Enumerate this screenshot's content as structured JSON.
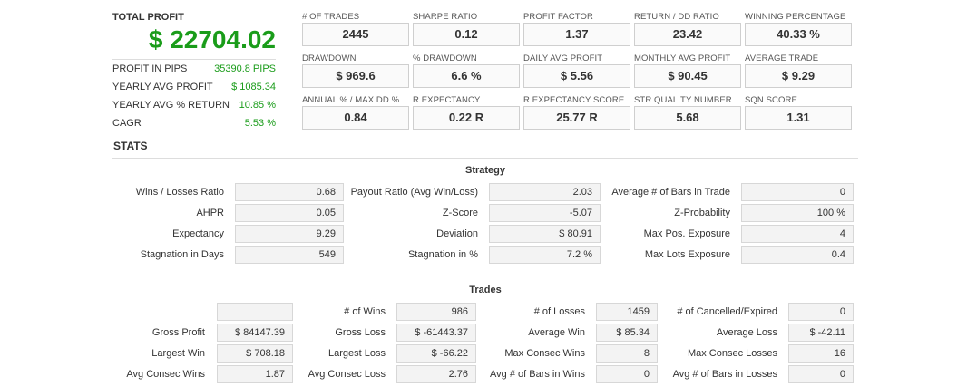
{
  "summary": {
    "title": "TOTAL PROFIT",
    "profit": "$ 22704.02",
    "accent_color": "#1a9c1a",
    "rows": [
      {
        "label": "PROFIT IN PIPS",
        "value": "35390.8 PIPS"
      },
      {
        "label": "YEARLY AVG PROFIT",
        "value": "$ 1085.34"
      },
      {
        "label": "YEARLY AVG % RETURN",
        "value": "10.85 %"
      },
      {
        "label": "CAGR",
        "value": "5.53 %"
      }
    ]
  },
  "cards": [
    {
      "label": "# OF TRADES",
      "value": "2445"
    },
    {
      "label": "SHARPE RATIO",
      "value": "0.12"
    },
    {
      "label": "PROFIT FACTOR",
      "value": "1.37"
    },
    {
      "label": "RETURN / DD RATIO",
      "value": "23.42"
    },
    {
      "label": "WINNING PERCENTAGE",
      "value": "40.33 %"
    },
    {
      "label": "DRAWDOWN",
      "value": "$ 969.6"
    },
    {
      "label": "% DRAWDOWN",
      "value": "6.6 %"
    },
    {
      "label": "DAILY AVG PROFIT",
      "value": "$ 5.56"
    },
    {
      "label": "MONTHLY AVG PROFIT",
      "value": "$ 90.45"
    },
    {
      "label": "AVERAGE TRADE",
      "value": "$ 9.29"
    },
    {
      "label": "ANNUAL % / MAX DD %",
      "value": "0.84"
    },
    {
      "label": "R EXPECTANCY",
      "value": "0.22 R"
    },
    {
      "label": "R EXPECTANCY SCORE",
      "value": "25.77 R"
    },
    {
      "label": "STR QUALITY NUMBER",
      "value": "5.68"
    },
    {
      "label": "SQN SCORE",
      "value": "1.31"
    }
  ],
  "stats": {
    "title": "STATS",
    "strategy": {
      "title": "Strategy",
      "rows": [
        [
          {
            "label": "Wins / Losses Ratio",
            "value": "0.68"
          },
          {
            "label": "Payout Ratio (Avg Win/Loss)",
            "value": "2.03"
          },
          {
            "label": "Average # of Bars in Trade",
            "value": "0"
          }
        ],
        [
          {
            "label": "AHPR",
            "value": "0.05"
          },
          {
            "label": "Z-Score",
            "value": "-5.07"
          },
          {
            "label": "Z-Probability",
            "value": "100 %"
          }
        ],
        [
          {
            "label": "Expectancy",
            "value": "9.29"
          },
          {
            "label": "Deviation",
            "value": "$ 80.91"
          },
          {
            "label": "Max Pos. Exposure",
            "value": "4"
          }
        ],
        [
          {
            "label": "Stagnation in Days",
            "value": "549"
          },
          {
            "label": "Stagnation in %",
            "value": "7.2 %"
          },
          {
            "label": "Max Lots Exposure",
            "value": "0.4"
          }
        ]
      ]
    },
    "trades": {
      "title": "Trades",
      "rows": [
        [
          {
            "label": "",
            "value": ""
          },
          {
            "label": "# of Wins",
            "value": "986"
          },
          {
            "label": "# of Losses",
            "value": "1459"
          },
          {
            "label": "# of Cancelled/Expired",
            "value": "0"
          }
        ],
        [
          {
            "label": "Gross Profit",
            "value": "$ 84147.39"
          },
          {
            "label": "Gross Loss",
            "value": "$ -61443.37"
          },
          {
            "label": "Average Win",
            "value": "$ 85.34"
          },
          {
            "label": "Average Loss",
            "value": "$ -42.11"
          }
        ],
        [
          {
            "label": "Largest Win",
            "value": "$ 708.18"
          },
          {
            "label": "Largest Loss",
            "value": "$ -66.22"
          },
          {
            "label": "Max Consec Wins",
            "value": "8"
          },
          {
            "label": "Max Consec Losses",
            "value": "16"
          }
        ],
        [
          {
            "label": "Avg Consec Wins",
            "value": "1.87"
          },
          {
            "label": "Avg Consec Loss",
            "value": "2.76"
          },
          {
            "label": "Avg # of Bars in Wins",
            "value": "0"
          },
          {
            "label": "Avg # of Bars in Losses",
            "value": "0"
          }
        ]
      ]
    }
  }
}
